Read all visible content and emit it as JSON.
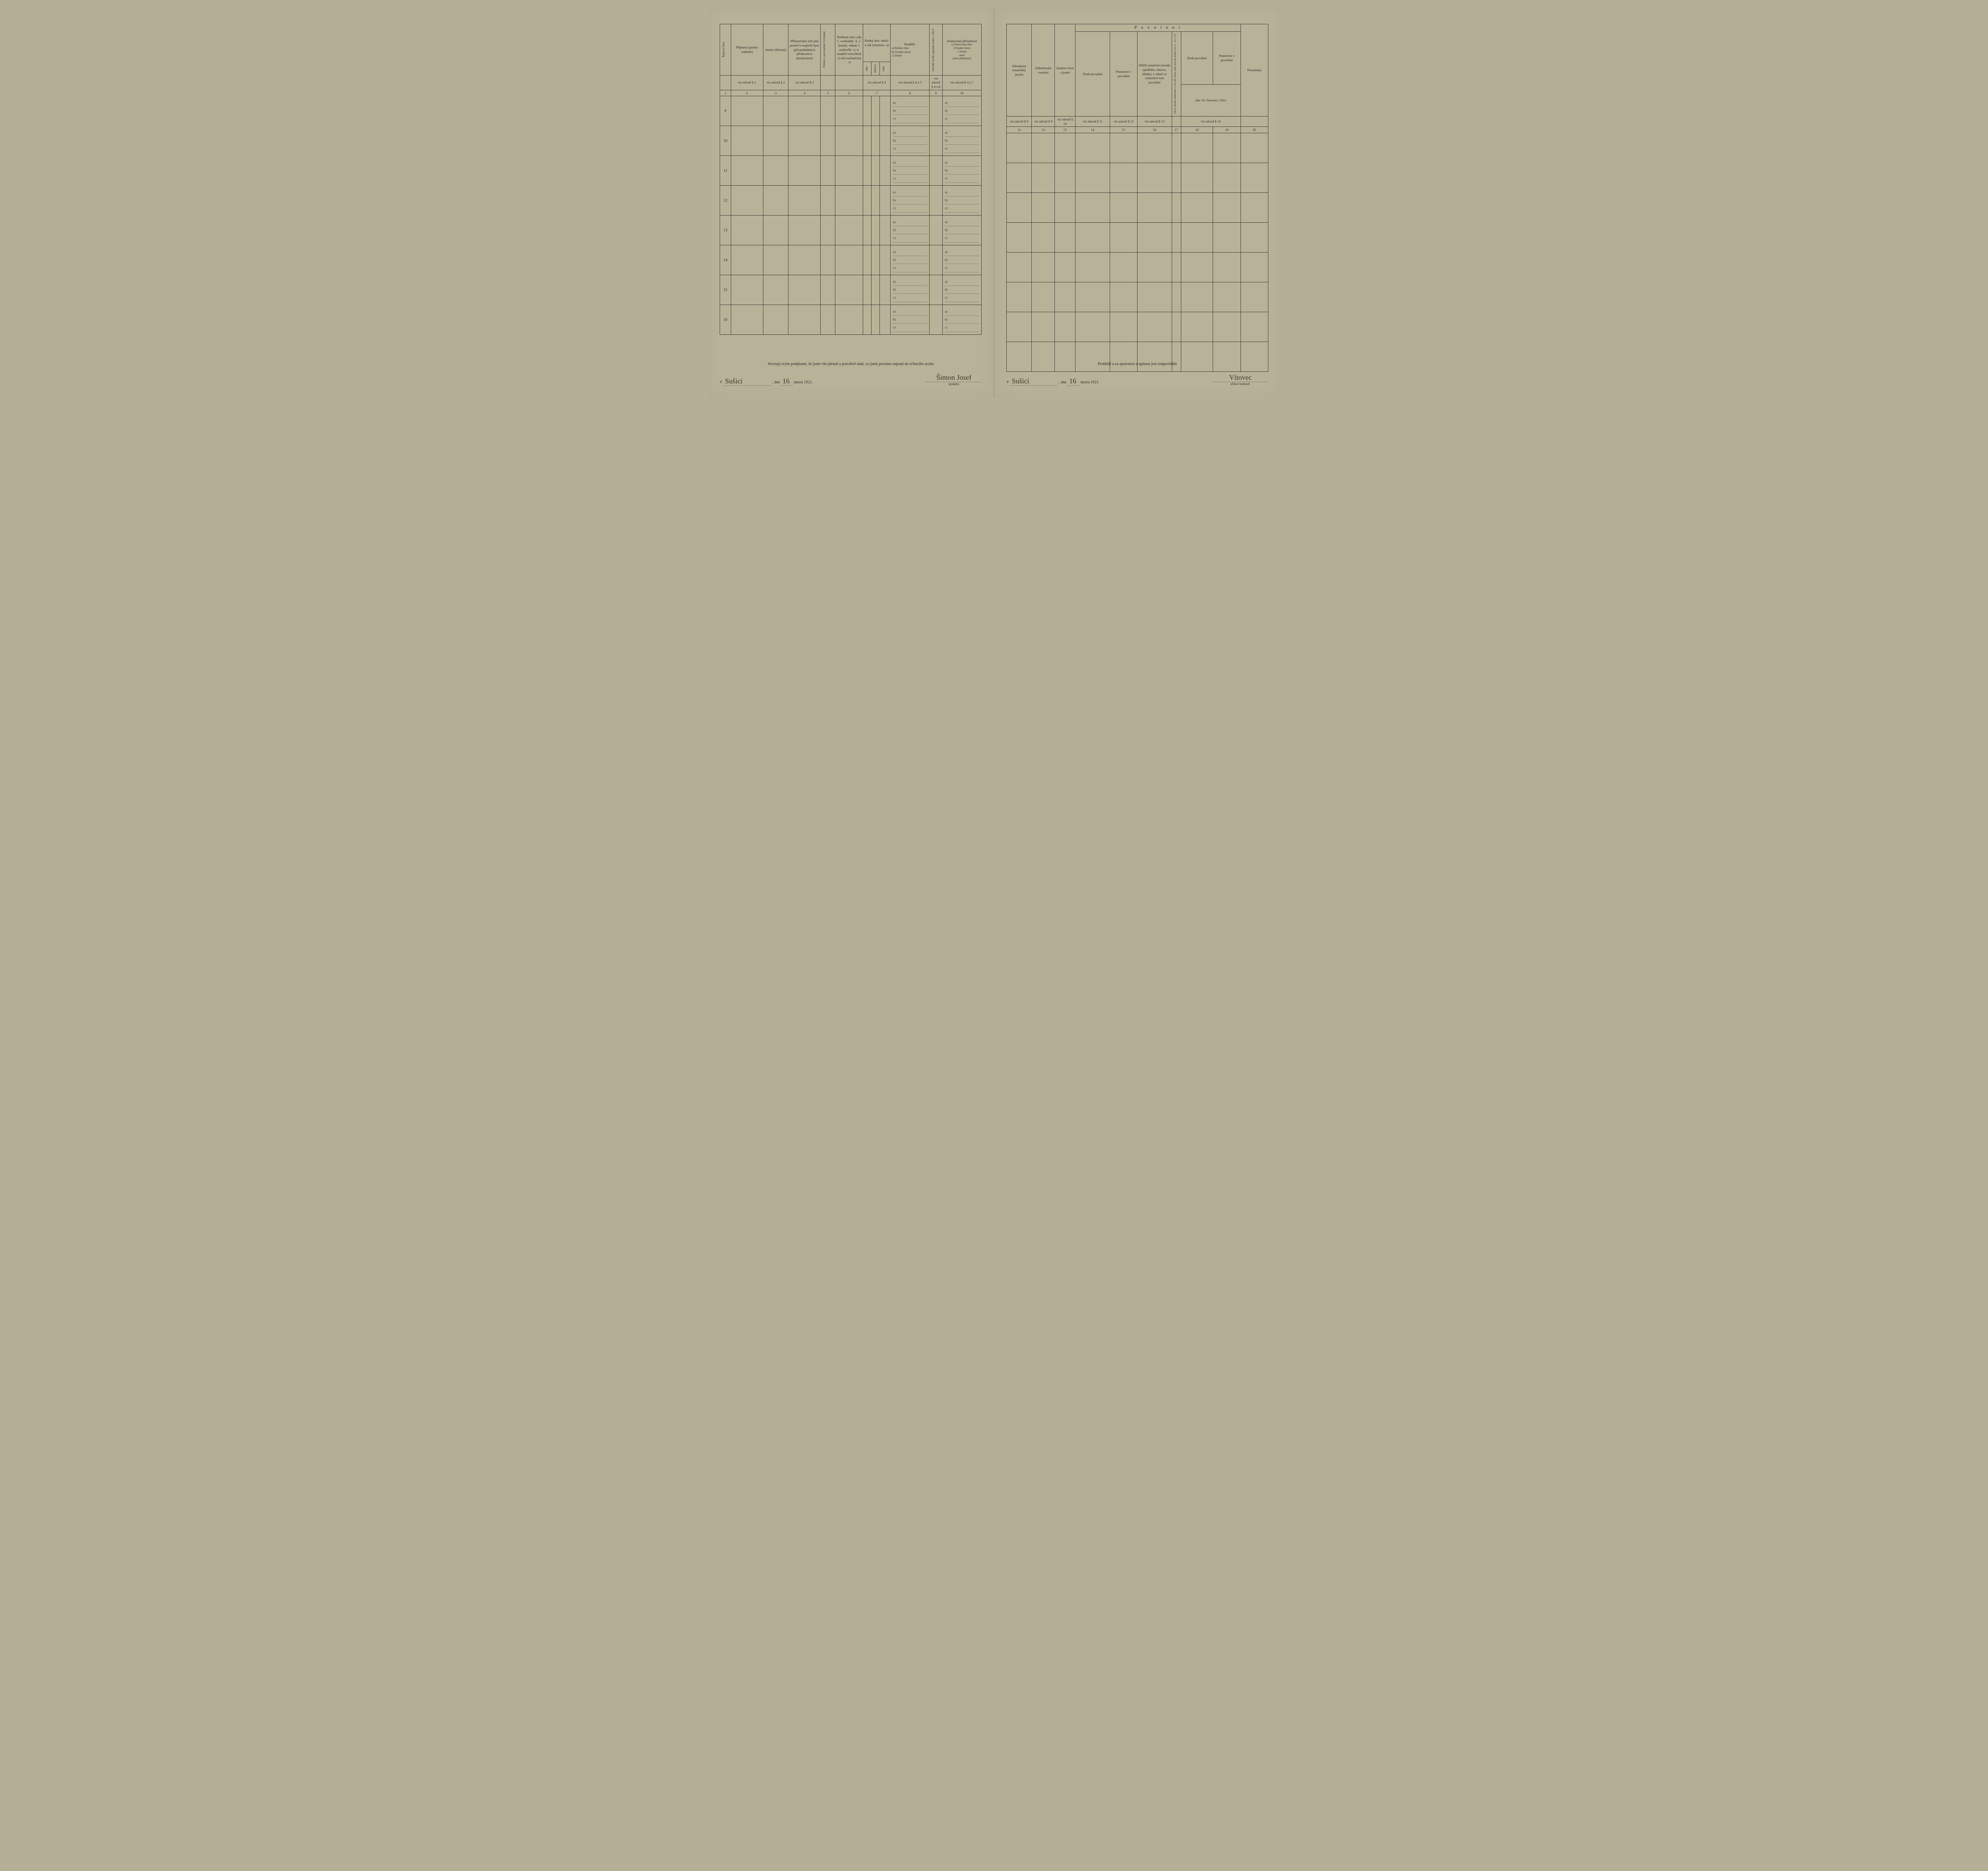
{
  "left": {
    "headers": {
      "c1": "Řadové číslo",
      "c2": "Příjmení (jméno rodinné)",
      "c3": "Jméno (křestní)",
      "c4": "Příbuzenský neb jiný poměr k majiteli bytu (při podnájmu k přednostovi domácnosti)",
      "c5": "Pohlaví, zda mužské či ženské",
      "c6": "Rodinný stav, zda 1. svobodný -á, 2. ženatý, vdaná 3. ovdovělý -á, 4. soudně roz­vedený -á neb rozloučený -á",
      "c7": "Rodný den, měsíc a rok (narozen -a)",
      "c7a": "dne",
      "c7b": "měsíce",
      "c7c": "roku",
      "c8": "Rodiště:",
      "c8sub": "a) Rodná obec\nb) Soudní okres\nc) Země",
      "c9": "Od kdy bydlí zapsaná osoba v obci?",
      "c10": "Domovská příslušnost",
      "c10sub": "(a Domovská obec\nb Soudní okres\nc Země)\naneb\nstátní příslušnost"
    },
    "refs": {
      "r1": "viz návod § 1",
      "r2": "viz návod § 2",
      "r3": "viz návod § 3",
      "r7": "viz návod § 4",
      "r8": "viz návod § 4 a 5",
      "r9": "viz návod § 4 a 6",
      "r10": "viz návod § 4 a 7"
    },
    "colnums": [
      "1",
      "2",
      "3",
      "4",
      "5",
      "6",
      "7",
      "8",
      "9",
      "10"
    ],
    "rownums": [
      "9",
      "10",
      "11",
      "12",
      "13",
      "14",
      "15",
      "16"
    ],
    "abc": {
      "a": "a)",
      "b": "b)",
      "c": "c)"
    },
    "footer": {
      "affirm": "Stvrzuji svým podpisem, že jsem vše přesně a pravdivě udal, co jsem povinen zapsati do sčítacího archu",
      "v": "V",
      "place": "Sušici",
      "dne": ", dne",
      "day": "16",
      "month_year": "února 1921.",
      "sig": "Šimon Josef",
      "sig_label": "(podpis)"
    }
  },
  "right": {
    "povolani": "P o v o l á n í",
    "headers": {
      "c11": "Národnost (mateřský jazyk)",
      "c12": "Ná­boženské vyznání",
      "c13": "Znalost čtení a psaní",
      "c14": "Druh povolání",
      "c15": "Postavení v povolání",
      "c16": "Bližší označení závodu (pod­niku, ústavu, úřadu), v němž se vykonává toto povolání",
      "c17tiny": "Zda je dělník zaměstnán v závodě cizím, nebo pracuje doma (viz § 16 a 17)",
      "c18": "Druh povolání",
      "c19": "Postavení v povolání",
      "c18_19_date": "dne 16. července 1914",
      "c20": "Poznámka"
    },
    "refs": {
      "r11": "viz návod § 8",
      "r12": "viz návod § 9",
      "r13": "viz návod § 10",
      "r14": "viz návod § 11",
      "r15": "viz návod § 12",
      "r16": "viz návod § 13",
      "r18": "viz návod § 14"
    },
    "colnums": [
      "11",
      "12",
      "13",
      "14",
      "15",
      "16",
      "17",
      "18",
      "19",
      "20"
    ],
    "footer": {
      "affirm": "Prohlédl a za správnost a úplnost jest zodpověděn",
      "v": "V",
      "place": "Sušici",
      "dne": ", dne",
      "day": "16",
      "month_year": "února 1921.",
      "sig": "Vítovec",
      "sig_label": "sčítací komisař."
    }
  }
}
